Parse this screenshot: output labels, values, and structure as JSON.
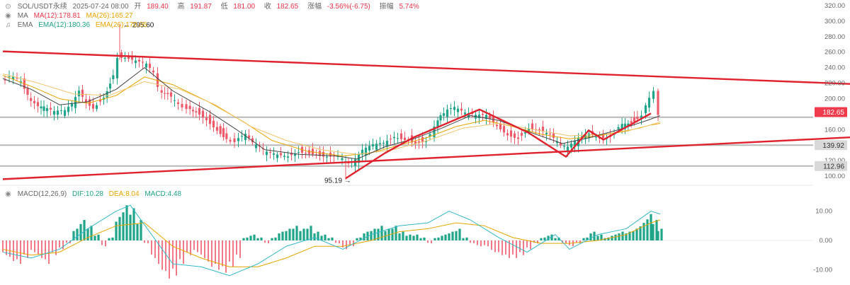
{
  "header": {
    "symbol": "SOL/USDT永续",
    "datetime": "2025-07-24 08:00",
    "open_label": "开",
    "open": "189.40",
    "high_label": "高",
    "high": "191.87",
    "low_label": "低",
    "low": "181.00",
    "close_label": "收",
    "close": "182.65",
    "change_label": "涨幅",
    "change": "-3.56%(-6.75)",
    "amp_label": "振幅",
    "amp": "5.74%"
  },
  "indicators": {
    "ma": {
      "label": "MA",
      "ma12": "MA(12):178.81",
      "ma26": "MA(26):165.27"
    },
    "ema": {
      "label": "EMA",
      "ema12": "EMA(12):180.36",
      "ema26": "EMA(26):170.05"
    },
    "macd": {
      "label": "MACD(12,26,9)",
      "dif": "DIF:10.28",
      "dea": "DEA:8.04",
      "macd": "MACD:4.48"
    }
  },
  "colors": {
    "up": "#20a58a",
    "down": "#ef5a6a",
    "trend": "#e0222e",
    "level": "#b8b8b8",
    "ma_fast": "#e8334a",
    "ma_slow": "#e8a500",
    "ema_fast": "#444444"
  },
  "chart_data": {
    "type": "candlestick",
    "price_axis": {
      "min": 100,
      "max": 320,
      "ticks": [
        "320.00",
        "300.00",
        "280.00",
        "260.00",
        "240.00",
        "220.00",
        "200.00",
        "180.00",
        "160.00",
        "140.00",
        "120.00",
        "100.00"
      ]
    },
    "macd_axis": {
      "min": -14,
      "max": 14,
      "ticks": [
        "10.00",
        "0.00",
        "-10.00"
      ]
    },
    "annotations": {
      "high_marker": "295.60",
      "low_marker": "95.19",
      "current_price": "182.65",
      "level_mid": "139.92",
      "level_low": "112.96"
    },
    "horizontal_levels": [
      176,
      139.92,
      112.96
    ],
    "price_path": [
      [
        0,
        228
      ],
      [
        12,
        226
      ],
      [
        28,
        222
      ],
      [
        42,
        196
      ],
      [
        52,
        190
      ],
      [
        60,
        186
      ],
      [
        75,
        180
      ],
      [
        90,
        182
      ],
      [
        100,
        192
      ],
      [
        110,
        210
      ],
      [
        120,
        196
      ],
      [
        130,
        190
      ],
      [
        145,
        205
      ],
      [
        158,
        230
      ],
      [
        165,
        256
      ],
      [
        175,
        254
      ],
      [
        185,
        250
      ],
      [
        195,
        246
      ],
      [
        205,
        242
      ],
      [
        215,
        230
      ],
      [
        222,
        214
      ],
      [
        235,
        204
      ],
      [
        250,
        192
      ],
      [
        262,
        190
      ],
      [
        275,
        186
      ],
      [
        290,
        176
      ],
      [
        305,
        162
      ],
      [
        318,
        150
      ],
      [
        330,
        146
      ],
      [
        345,
        152
      ],
      [
        355,
        140
      ],
      [
        365,
        134
      ],
      [
        375,
        128
      ],
      [
        390,
        126
      ],
      [
        405,
        126
      ],
      [
        420,
        134
      ],
      [
        440,
        132
      ],
      [
        455,
        128
      ],
      [
        470,
        126
      ],
      [
        482,
        120
      ],
      [
        490,
        113
      ],
      [
        500,
        118
      ],
      [
        510,
        130
      ],
      [
        525,
        138
      ],
      [
        540,
        142
      ],
      [
        555,
        152
      ],
      [
        570,
        150
      ],
      [
        585,
        146
      ],
      [
        600,
        148
      ],
      [
        612,
        160
      ],
      [
        620,
        176
      ],
      [
        630,
        184
      ],
      [
        640,
        186
      ],
      [
        655,
        178
      ],
      [
        670,
        176
      ],
      [
        685,
        178
      ],
      [
        700,
        166
      ],
      [
        715,
        156
      ],
      [
        730,
        152
      ],
      [
        745,
        164
      ],
      [
        760,
        160
      ],
      [
        775,
        152
      ],
      [
        790,
        136
      ],
      [
        800,
        134
      ],
      [
        815,
        146
      ],
      [
        830,
        154
      ],
      [
        845,
        150
      ],
      [
        860,
        154
      ],
      [
        872,
        162
      ],
      [
        885,
        170
      ],
      [
        898,
        176
      ],
      [
        905,
        182
      ],
      [
        915,
        200
      ],
      [
        922,
        206
      ],
      [
        928,
        182
      ]
    ],
    "ma_fast": [
      [
        0,
        226
      ],
      [
        40,
        212
      ],
      [
        80,
        192
      ],
      [
        120,
        196
      ],
      [
        160,
        212
      ],
      [
        200,
        240
      ],
      [
        240,
        210
      ],
      [
        290,
        184
      ],
      [
        330,
        160
      ],
      [
        370,
        134
      ],
      [
        420,
        128
      ],
      [
        470,
        126
      ],
      [
        500,
        122
      ],
      [
        540,
        138
      ],
      [
        580,
        148
      ],
      [
        620,
        162
      ],
      [
        660,
        178
      ],
      [
        700,
        172
      ],
      [
        740,
        158
      ],
      [
        790,
        142
      ],
      [
        830,
        150
      ],
      [
        870,
        160
      ],
      [
        910,
        172
      ],
      [
        928,
        178
      ]
    ],
    "ma_slow": [
      [
        0,
        230
      ],
      [
        40,
        216
      ],
      [
        80,
        200
      ],
      [
        120,
        194
      ],
      [
        160,
        204
      ],
      [
        200,
        228
      ],
      [
        240,
        218
      ],
      [
        290,
        196
      ],
      [
        340,
        170
      ],
      [
        380,
        146
      ],
      [
        430,
        132
      ],
      [
        480,
        126
      ],
      [
        520,
        130
      ],
      [
        560,
        140
      ],
      [
        600,
        150
      ],
      [
        640,
        164
      ],
      [
        680,
        172
      ],
      [
        720,
        164
      ],
      [
        760,
        154
      ],
      [
        800,
        148
      ],
      [
        840,
        152
      ],
      [
        880,
        158
      ],
      [
        915,
        166
      ],
      [
        928,
        168
      ]
    ],
    "ema_slow": [
      [
        0,
        232
      ],
      [
        50,
        220
      ],
      [
        100,
        206
      ],
      [
        150,
        204
      ],
      [
        200,
        222
      ],
      [
        250,
        212
      ],
      [
        300,
        192
      ],
      [
        350,
        164
      ],
      [
        400,
        146
      ],
      [
        450,
        134
      ],
      [
        500,
        128
      ],
      [
        550,
        134
      ],
      [
        600,
        146
      ],
      [
        650,
        162
      ],
      [
        700,
        168
      ],
      [
        750,
        160
      ],
      [
        800,
        152
      ],
      [
        850,
        154
      ],
      [
        900,
        162
      ],
      [
        928,
        170
      ]
    ],
    "trendlines": [
      {
        "points": [
          [
            0,
            261
          ],
          [
            1200,
            219
          ]
        ]
      },
      {
        "points": [
          [
            0,
            96
          ],
          [
            1200,
            150
          ]
        ]
      },
      {
        "points": [
          [
            484,
            97
          ],
          [
            540,
            130
          ],
          [
            580,
            150
          ],
          [
            673,
            186
          ],
          [
            742,
            156
          ],
          [
            795,
            125
          ],
          [
            827,
            159
          ],
          [
            848,
            147
          ],
          [
            915,
            181
          ]
        ]
      }
    ],
    "macd_hist": [
      [
        0,
        -5
      ],
      [
        10,
        -7
      ],
      [
        20,
        -8
      ],
      [
        30,
        -6
      ],
      [
        40,
        -4
      ],
      [
        50,
        -6
      ],
      [
        60,
        -8
      ],
      [
        70,
        -5
      ],
      [
        80,
        -3
      ],
      [
        90,
        -1
      ],
      [
        100,
        4
      ],
      [
        110,
        7
      ],
      [
        120,
        5
      ],
      [
        130,
        2
      ],
      [
        140,
        -2
      ],
      [
        150,
        1
      ],
      [
        160,
        8
      ],
      [
        170,
        12
      ],
      [
        180,
        11
      ],
      [
        190,
        7
      ],
      [
        200,
        -1
      ],
      [
        210,
        -6
      ],
      [
        220,
        -10
      ],
      [
        230,
        -13
      ],
      [
        240,
        -12
      ],
      [
        250,
        -8
      ],
      [
        260,
        -5
      ],
      [
        270,
        -4
      ],
      [
        280,
        -6
      ],
      [
        290,
        -9
      ],
      [
        300,
        -10
      ],
      [
        310,
        -11
      ],
      [
        320,
        -9
      ],
      [
        330,
        -6
      ],
      [
        340,
        1
      ],
      [
        350,
        2
      ],
      [
        360,
        1
      ],
      [
        370,
        -1
      ],
      [
        380,
        1
      ],
      [
        390,
        3
      ],
      [
        400,
        4
      ],
      [
        410,
        5
      ],
      [
        420,
        4
      ],
      [
        430,
        5
      ],
      [
        440,
        3
      ],
      [
        450,
        2
      ],
      [
        460,
        1
      ],
      [
        470,
        -1
      ],
      [
        480,
        -3
      ],
      [
        490,
        -2
      ],
      [
        500,
        1
      ],
      [
        510,
        3
      ],
      [
        520,
        4
      ],
      [
        530,
        5
      ],
      [
        540,
        4
      ],
      [
        550,
        5
      ],
      [
        560,
        3
      ],
      [
        570,
        2
      ],
      [
        580,
        2
      ],
      [
        590,
        1
      ],
      [
        600,
        -1
      ],
      [
        610,
        1
      ],
      [
        620,
        2
      ],
      [
        630,
        3
      ],
      [
        640,
        4
      ],
      [
        650,
        1
      ],
      [
        660,
        -1
      ],
      [
        670,
        -2
      ],
      [
        680,
        -2
      ],
      [
        690,
        -4
      ],
      [
        700,
        -5
      ],
      [
        710,
        -6
      ],
      [
        720,
        -6
      ],
      [
        730,
        -5
      ],
      [
        740,
        -3
      ],
      [
        750,
        -1
      ],
      [
        760,
        1
      ],
      [
        770,
        2
      ],
      [
        780,
        1
      ],
      [
        790,
        -1
      ],
      [
        800,
        -2
      ],
      [
        810,
        -1
      ],
      [
        820,
        1
      ],
      [
        830,
        3
      ],
      [
        840,
        2
      ],
      [
        850,
        1
      ],
      [
        860,
        2
      ],
      [
        870,
        3
      ],
      [
        880,
        3
      ],
      [
        890,
        4
      ],
      [
        900,
        6
      ],
      [
        910,
        9
      ],
      [
        918,
        7
      ],
      [
        925,
        4
      ]
    ],
    "dif_line": [
      [
        0,
        -4
      ],
      [
        40,
        -6
      ],
      [
        80,
        -3
      ],
      [
        120,
        4
      ],
      [
        160,
        10
      ],
      [
        180,
        12
      ],
      [
        210,
        2
      ],
      [
        240,
        -8
      ],
      [
        280,
        -9
      ],
      [
        320,
        -12
      ],
      [
        360,
        -8
      ],
      [
        400,
        -2
      ],
      [
        440,
        1
      ],
      [
        480,
        -3
      ],
      [
        520,
        2
      ],
      [
        560,
        5
      ],
      [
        600,
        6
      ],
      [
        630,
        10
      ],
      [
        660,
        7
      ],
      [
        700,
        1
      ],
      [
        740,
        -4
      ],
      [
        780,
        2
      ],
      [
        800,
        -3
      ],
      [
        840,
        2
      ],
      [
        880,
        4
      ],
      [
        915,
        10
      ],
      [
        928,
        9
      ]
    ],
    "dea_line": [
      [
        0,
        -3
      ],
      [
        40,
        -5
      ],
      [
        80,
        -4
      ],
      [
        120,
        1
      ],
      [
        160,
        5
      ],
      [
        200,
        6
      ],
      [
        240,
        -2
      ],
      [
        280,
        -6
      ],
      [
        320,
        -9
      ],
      [
        360,
        -9
      ],
      [
        400,
        -6
      ],
      [
        440,
        -2
      ],
      [
        480,
        -2
      ],
      [
        520,
        0
      ],
      [
        560,
        3
      ],
      [
        600,
        4
      ],
      [
        640,
        6
      ],
      [
        680,
        5
      ],
      [
        720,
        1
      ],
      [
        760,
        -1
      ],
      [
        800,
        -1
      ],
      [
        840,
        0
      ],
      [
        880,
        2
      ],
      [
        915,
        6
      ],
      [
        928,
        7
      ]
    ]
  }
}
